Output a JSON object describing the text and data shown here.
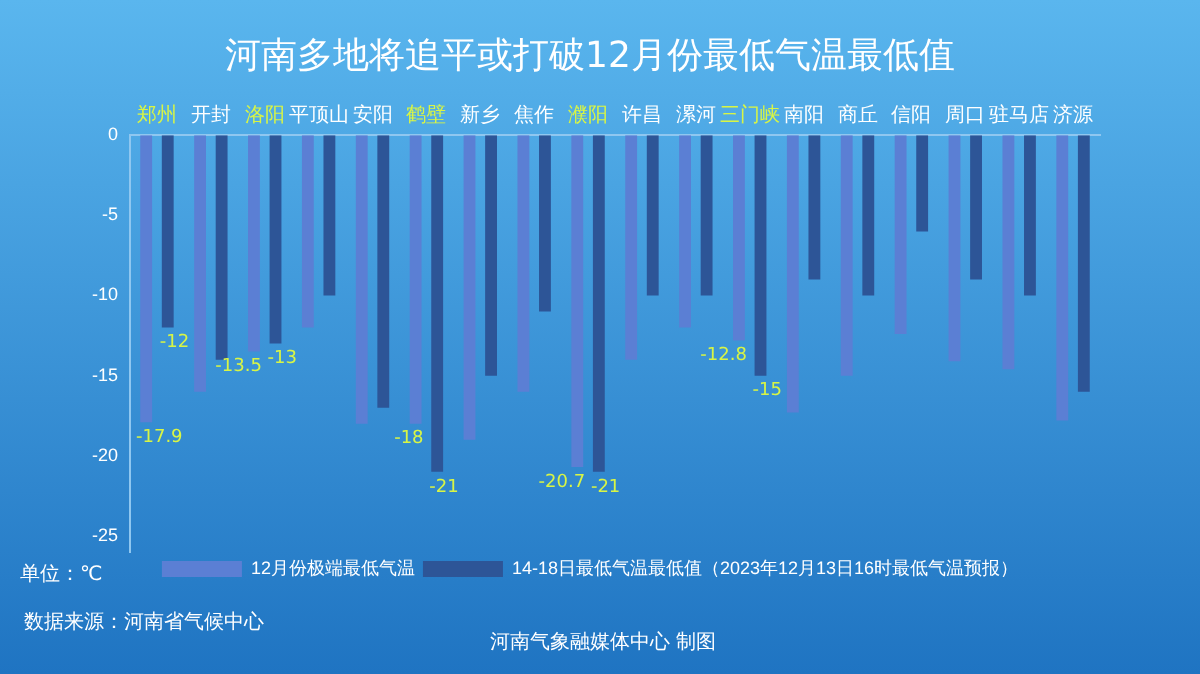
{
  "chart_data": {
    "type": "bar",
    "title": "河南多地将追平或打破12月份最低气温最低值",
    "categories": [
      "郑州",
      "开封",
      "洛阳",
      "平顶山",
      "安阳",
      "鹤壁",
      "新乡",
      "焦作",
      "濮阳",
      "许昌",
      "漯河",
      "三门峡",
      "南阳",
      "商丘",
      "信阳",
      "周口",
      "驻马店",
      "济源"
    ],
    "series": [
      {
        "name": "12月份极端最低气温",
        "color": "#5b7fd4",
        "values": [
          -17.9,
          -16,
          -13.5,
          -12,
          -18,
          -18,
          -19,
          -16,
          -20.7,
          -14,
          -12,
          -12.8,
          -17.3,
          -15,
          -12.4,
          -14.1,
          -14.6,
          -17.8
        ],
        "value_labels": [
          "-17.9",
          null,
          "-13.5",
          null,
          null,
          "-18",
          null,
          null,
          "-20.7",
          null,
          null,
          "-12.8",
          null,
          null,
          null,
          null,
          null,
          null
        ]
      },
      {
        "name": "14-18日最低气温最低值（2023年12月13日16时最低气温预报）",
        "color": "#2d5597",
        "values": [
          -12,
          -14,
          -13,
          -10,
          -17,
          -21,
          -15,
          -11,
          -21,
          -10,
          -10,
          -15,
          -9,
          -10,
          -6,
          -9,
          -10,
          -16
        ],
        "value_labels": [
          "-12",
          null,
          "-13",
          null,
          null,
          "-21",
          null,
          null,
          "-21",
          null,
          null,
          "-15",
          null,
          null,
          null,
          null,
          null,
          null
        ]
      }
    ],
    "ylim": [
      -26,
      0
    ],
    "yticks": [
      0,
      -5,
      -10,
      -15,
      -20,
      -25
    ],
    "grid": false,
    "legend": "bottom",
    "annotations": [
      "单位：℃",
      "数据来源：河南省气候中心",
      "河南气象融媒体中心  制图"
    ]
  }
}
